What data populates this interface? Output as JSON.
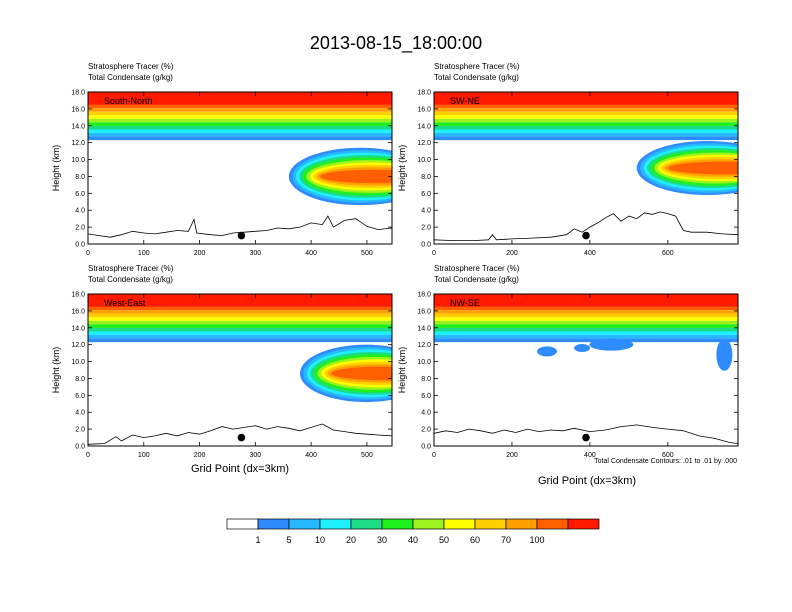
{
  "figure": {
    "title": "2013-08-15_18:00:00",
    "contour_note": "Total Condensate Contours: .01 to .01 by .000",
    "xlabel": "Grid Point (dx=3km)"
  },
  "colorbar": {
    "labels": [
      "1",
      "5",
      "10",
      "20",
      "30",
      "40",
      "50",
      "60",
      "70",
      "100"
    ],
    "colors": [
      "#ffffff",
      "#2f8cff",
      "#27b8ff",
      "#1ff0ff",
      "#1ddc88",
      "#1ef01e",
      "#9cf21e",
      "#ffff00",
      "#ffcf00",
      "#ff9f00",
      "#ff5f00",
      "#ff1a00"
    ]
  },
  "chart_data": [
    {
      "type": "heatmap",
      "panel": "South-North",
      "label1": "Stratosphere Tracer   (%)",
      "label2": "Total Condensate   (g/kg)",
      "ylabel": "Height (km)",
      "xlim": [
        0,
        545
      ],
      "ylim": [
        0,
        18
      ],
      "xticks": [
        "0",
        "100",
        "200",
        "300",
        "400",
        "500"
      ],
      "xtick_values": [
        0,
        100,
        200,
        300,
        400,
        500
      ],
      "yticks": [
        "0.0",
        "2.0",
        "4.0",
        "6.0",
        "8.0",
        "10.0",
        "12.0",
        "14.0",
        "16.0",
        "18.0"
      ],
      "marker_x": 275,
      "marker_y": 1.0,
      "tongue": {
        "tip_x": 360,
        "center_height": 8.0,
        "thickness": 3.4
      },
      "terrain": [
        [
          0,
          1.2
        ],
        [
          20,
          1.0
        ],
        [
          40,
          0.8
        ],
        [
          60,
          1.1
        ],
        [
          80,
          1.5
        ],
        [
          100,
          1.3
        ],
        [
          120,
          1.2
        ],
        [
          140,
          1.4
        ],
        [
          160,
          1.6
        ],
        [
          180,
          1.5
        ],
        [
          190,
          2.9
        ],
        [
          195,
          1.3
        ],
        [
          220,
          1.1
        ],
        [
          240,
          1.0
        ],
        [
          260,
          1.3
        ],
        [
          280,
          1.4
        ],
        [
          300,
          1.5
        ],
        [
          320,
          1.6
        ],
        [
          340,
          1.9
        ],
        [
          360,
          1.8
        ],
        [
          380,
          2.0
        ],
        [
          400,
          2.5
        ],
        [
          420,
          2.3
        ],
        [
          430,
          3.3
        ],
        [
          440,
          2.0
        ],
        [
          460,
          2.8
        ],
        [
          480,
          3.0
        ],
        [
          500,
          2.1
        ],
        [
          520,
          1.7
        ],
        [
          545,
          1.9
        ]
      ]
    },
    {
      "type": "heatmap",
      "panel": "SW-NE",
      "label1": "Stratosphere Tracer   (%)",
      "label2": "Total Condensate   (g/kg)",
      "ylabel": "Height (km)",
      "xlim": [
        0,
        780
      ],
      "ylim": [
        0,
        18
      ],
      "xticks": [
        "0",
        "200",
        "400",
        "600"
      ],
      "xtick_values": [
        0,
        200,
        400,
        600
      ],
      "yticks": [
        "0.0",
        "2.0",
        "4.0",
        "6.0",
        "8.0",
        "10.0",
        "12.0",
        "14.0",
        "16.0",
        "18.0"
      ],
      "marker_x": 390,
      "marker_y": 1.0,
      "tongue": {
        "tip_x": 520,
        "center_height": 9.0,
        "thickness": 3.2
      },
      "terrain": [
        [
          0,
          0.5
        ],
        [
          50,
          0.4
        ],
        [
          100,
          0.4
        ],
        [
          140,
          0.5
        ],
        [
          150,
          1.1
        ],
        [
          160,
          0.5
        ],
        [
          200,
          0.6
        ],
        [
          250,
          0.7
        ],
        [
          300,
          0.8
        ],
        [
          340,
          1.1
        ],
        [
          360,
          1.8
        ],
        [
          380,
          1.4
        ],
        [
          400,
          2.0
        ],
        [
          420,
          2.5
        ],
        [
          440,
          3.1
        ],
        [
          460,
          3.6
        ],
        [
          480,
          2.7
        ],
        [
          500,
          3.3
        ],
        [
          520,
          3.0
        ],
        [
          540,
          3.7
        ],
        [
          560,
          3.5
        ],
        [
          580,
          3.8
        ],
        [
          600,
          3.6
        ],
        [
          620,
          3.3
        ],
        [
          640,
          1.6
        ],
        [
          660,
          1.4
        ],
        [
          700,
          1.4
        ],
        [
          740,
          1.2
        ],
        [
          780,
          1.1
        ]
      ]
    },
    {
      "type": "heatmap",
      "panel": "West-East",
      "label1": "Stratosphere Tracer   (%)",
      "label2": "Total Condensate   (g/kg)",
      "ylabel": "Height (km)",
      "xlim": [
        0,
        545
      ],
      "ylim": [
        0,
        18
      ],
      "xticks": [
        "0",
        "100",
        "200",
        "300",
        "400",
        "500"
      ],
      "xtick_values": [
        0,
        100,
        200,
        300,
        400,
        500
      ],
      "yticks": [
        "0.0",
        "2.0",
        "4.0",
        "6.0",
        "8.0",
        "10.0",
        "12.0",
        "14.0",
        "16.0",
        "18.0"
      ],
      "marker_x": 275,
      "marker_y": 1.0,
      "tongue": {
        "tip_x": 380,
        "center_height": 8.6,
        "thickness": 3.4
      },
      "terrain": [
        [
          0,
          0.2
        ],
        [
          30,
          0.3
        ],
        [
          50,
          1.1
        ],
        [
          60,
          0.6
        ],
        [
          80,
          1.3
        ],
        [
          100,
          1.0
        ],
        [
          120,
          1.2
        ],
        [
          140,
          1.5
        ],
        [
          160,
          1.2
        ],
        [
          180,
          1.6
        ],
        [
          200,
          1.4
        ],
        [
          220,
          1.8
        ],
        [
          240,
          2.3
        ],
        [
          260,
          2.0
        ],
        [
          280,
          2.2
        ],
        [
          300,
          2.4
        ],
        [
          320,
          2.0
        ],
        [
          340,
          2.3
        ],
        [
          360,
          2.1
        ],
        [
          380,
          1.8
        ],
        [
          400,
          2.2
        ],
        [
          420,
          2.6
        ],
        [
          440,
          1.9
        ],
        [
          460,
          1.7
        ],
        [
          480,
          1.5
        ],
        [
          500,
          1.4
        ],
        [
          520,
          1.3
        ],
        [
          545,
          1.2
        ]
      ]
    },
    {
      "type": "heatmap",
      "panel": "NW-SE",
      "label1": "Stratosphere Tracer   (%)",
      "label2": "Total Condensate   (g/kg)",
      "ylabel": "Height (km)",
      "xlim": [
        0,
        780
      ],
      "ylim": [
        0,
        18
      ],
      "xticks": [
        "0",
        "200",
        "400",
        "600"
      ],
      "xtick_values": [
        0,
        200,
        400,
        600
      ],
      "yticks": [
        "0.0",
        "2.0",
        "4.0",
        "6.0",
        "8.0",
        "10.0",
        "12.0",
        "14.0",
        "16.0",
        "18.0"
      ],
      "marker_x": 390,
      "marker_y": 1.0,
      "tongue": null,
      "terrain": [
        [
          0,
          1.5
        ],
        [
          30,
          1.8
        ],
        [
          60,
          1.6
        ],
        [
          90,
          2.0
        ],
        [
          120,
          1.8
        ],
        [
          150,
          1.5
        ],
        [
          180,
          1.9
        ],
        [
          210,
          1.6
        ],
        [
          240,
          2.0
        ],
        [
          270,
          1.7
        ],
        [
          300,
          1.9
        ],
        [
          330,
          1.8
        ],
        [
          360,
          2.1
        ],
        [
          400,
          1.7
        ],
        [
          440,
          1.9
        ],
        [
          480,
          2.3
        ],
        [
          520,
          2.5
        ],
        [
          560,
          2.2
        ],
        [
          600,
          2.0
        ],
        [
          640,
          1.8
        ],
        [
          680,
          1.2
        ],
        [
          720,
          0.9
        ],
        [
          760,
          0.4
        ],
        [
          780,
          0.3
        ]
      ]
    }
  ]
}
